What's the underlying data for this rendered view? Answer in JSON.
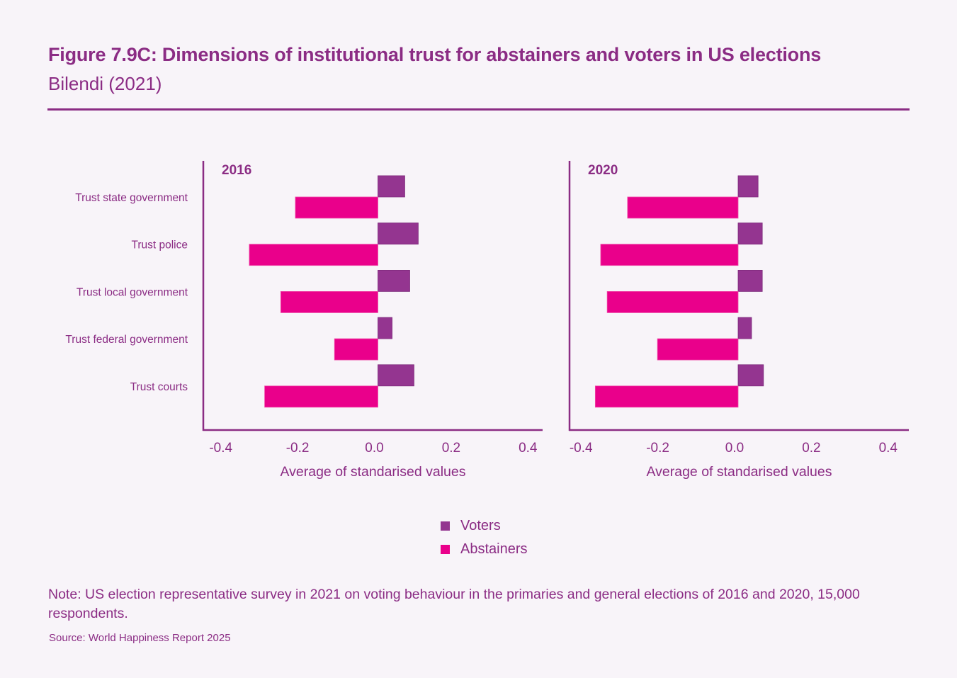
{
  "header": {
    "title": "Figure 7.9C: Dimensions of institutional trust for abstainers and voters in US elections",
    "subtitle": "Bilendi (2021)"
  },
  "colors": {
    "voters": "#943590",
    "abstainers": "#ea008b",
    "text": "#8b2c84",
    "background": "#f8f4f9"
  },
  "chart_data": [
    {
      "type": "bar",
      "orientation": "horizontal",
      "title": "2016",
      "categories": [
        "Trust state government",
        "Trust police",
        "Trust local government",
        "Trust federal government",
        "Trust courts"
      ],
      "series": [
        {
          "name": "Voters",
          "values": [
            0.07,
            0.105,
            0.083,
            0.037,
            0.094
          ]
        },
        {
          "name": "Abstainers",
          "values": [
            -0.215,
            -0.335,
            -0.253,
            -0.113,
            -0.295
          ]
        }
      ],
      "xlabel": "Average of standarised values",
      "ylabel": "",
      "xlim": [
        -0.45,
        0.43
      ],
      "xticks": [
        "-0.4",
        "-0.2",
        "0.0",
        "0.2",
        "0.4"
      ],
      "xtick_values": [
        -0.4,
        -0.2,
        0.0,
        0.2,
        0.4
      ],
      "grid": false
    },
    {
      "type": "bar",
      "orientation": "horizontal",
      "title": "2020",
      "categories": [
        "Trust state government",
        "Trust police",
        "Trust local government",
        "Trust federal government",
        "Trust courts"
      ],
      "series": [
        {
          "name": "Voters",
          "values": [
            0.052,
            0.063,
            0.063,
            0.035,
            0.066
          ]
        },
        {
          "name": "Abstainers",
          "values": [
            -0.288,
            -0.358,
            -0.341,
            -0.21,
            -0.372
          ]
        }
      ],
      "xlabel": "Average of standarised values",
      "ylabel": "",
      "xlim": [
        -0.45,
        0.43
      ],
      "xticks": [
        "-0.4",
        "-0.2",
        "0.0",
        "0.2",
        "0.4"
      ],
      "xtick_values": [
        -0.4,
        -0.2,
        0.0,
        0.2,
        0.4
      ],
      "grid": false
    }
  ],
  "legend": {
    "placement": "bottom-center",
    "items": [
      {
        "label": "Voters"
      },
      {
        "label": "Abstainers"
      }
    ]
  },
  "note": "Note: US election representative survey in 2021 on voting behaviour in the primaries and general elections of 2016 and 2020, 15,000 respondents.",
  "source": "Source: World Happiness Report 2025"
}
